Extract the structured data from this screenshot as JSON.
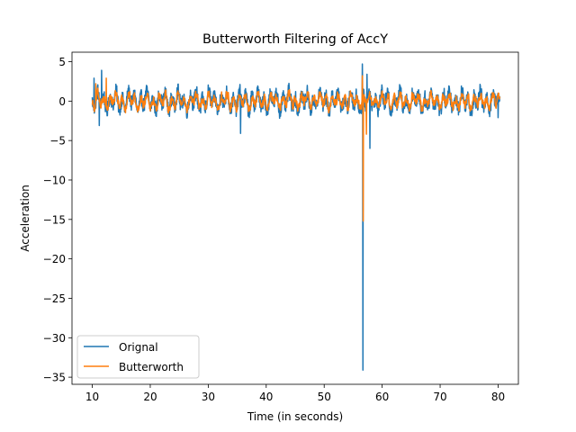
{
  "chart_data": {
    "type": "line",
    "title": "Butterworth Filtering of AccY",
    "xlabel": "Time (in seconds)",
    "ylabel": "Acceleration",
    "xlim": [
      6.5,
      83.5
    ],
    "ylim": [
      -35.9,
      6.2
    ],
    "xticks": [
      10,
      20,
      30,
      40,
      50,
      60,
      70,
      80
    ],
    "yticks": [
      5,
      0,
      -5,
      -10,
      -15,
      -20,
      -25,
      -30,
      -35
    ],
    "grid": false,
    "legend_position": "lower-left",
    "series": [
      {
        "name": "Orignal",
        "color": "#1f77b4",
        "x_start": 10,
        "x_end": 80.3,
        "sample_count": 1400,
        "baseline_amplitude": 1.6,
        "extremes": [
          {
            "x": 10.3,
            "y": 2.9
          },
          {
            "x": 11.6,
            "y": 3.9
          },
          {
            "x": 11.2,
            "y": -3.1
          },
          {
            "x": 35.6,
            "y": 4.7
          },
          {
            "x": 35.6,
            "y": -4.1
          },
          {
            "x": 56.6,
            "y": 4.7
          },
          {
            "x": 56.7,
            "y": -34.1
          },
          {
            "x": 57.4,
            "y": 3.4
          },
          {
            "x": 57.9,
            "y": -6.0
          },
          {
            "x": 80.0,
            "y": -2.1
          }
        ]
      },
      {
        "name": "Butterworth",
        "color": "#ff7f0e",
        "x_start": 10,
        "x_end": 80.3,
        "sample_count": 1400,
        "baseline_amplitude": 1.3,
        "extremes": [
          {
            "x": 10.6,
            "y": 2.2
          },
          {
            "x": 12.4,
            "y": 2.9
          },
          {
            "x": 56.6,
            "y": 3.2
          },
          {
            "x": 56.75,
            "y": -15.2
          },
          {
            "x": 57.3,
            "y": -4.2
          }
        ]
      }
    ]
  }
}
